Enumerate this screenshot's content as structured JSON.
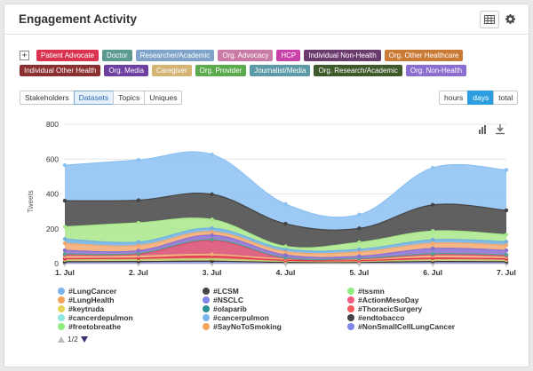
{
  "header": {
    "title": "Engagement Activity"
  },
  "tags_row1": [
    {
      "label": "Patient Advocate",
      "color": "#d9334f"
    },
    {
      "label": "Doctor",
      "color": "#5b9a8e"
    },
    {
      "label": "Researcher/Academic",
      "color": "#7fa3c9"
    },
    {
      "label": "Org. Advocacy",
      "color": "#c97ba5"
    },
    {
      "label": "HCP",
      "color": "#c940a8"
    },
    {
      "label": "Individual Non-Health",
      "color": "#6b3b6e"
    },
    {
      "label": "Org. Other Healthcare",
      "color": "#c97a34"
    }
  ],
  "tags_row2": [
    {
      "label": "Individual Other Health",
      "color": "#8a3030"
    },
    {
      "label": "Org. Media",
      "color": "#6c3fa0"
    },
    {
      "label": "Caregiver",
      "color": "#d4b373"
    },
    {
      "label": "Org. Provider",
      "color": "#5caa4e"
    },
    {
      "label": "Journalist/Media",
      "color": "#5c9aa8"
    },
    {
      "label": "Org. Research/Academic",
      "color": "#3e5a2a"
    },
    {
      "label": "Org. Non-Health",
      "color": "#8a6ed0"
    }
  ],
  "toggle_symbol": "+",
  "view_tabs": [
    {
      "label": "Stakeholders",
      "active": false
    },
    {
      "label": "Datasets",
      "active": true
    },
    {
      "label": "Topics",
      "active": false
    },
    {
      "label": "Uniques",
      "active": false
    }
  ],
  "granularity": [
    {
      "label": "hours",
      "active": false
    },
    {
      "label": "days",
      "active": true
    },
    {
      "label": "total",
      "active": false
    }
  ],
  "chart_data": {
    "type": "area",
    "stacked": true,
    "ylabel": "Tweets",
    "ylim": [
      0,
      800
    ],
    "yticks": [
      0,
      200,
      400,
      600,
      800
    ],
    "categories": [
      "1. Jul",
      "2. Jul",
      "3. Jul",
      "4. Jul",
      "5. Jul",
      "6. Jul",
      "7. Jul"
    ],
    "grid": true,
    "series": [
      {
        "name": "#freetobreathe",
        "color": "#a6e07f",
        "values": [
          1,
          1,
          1,
          1,
          1,
          1,
          1
        ]
      },
      {
        "name": "#NonSmallCellLungCancer",
        "color": "#7b6ee0",
        "values": [
          3,
          3,
          3,
          2,
          2,
          3,
          3
        ]
      },
      {
        "name": "#cancerdepulmon",
        "color": "#9ec3ea",
        "values": [
          5,
          6,
          7,
          3,
          3,
          6,
          5
        ]
      },
      {
        "name": "#endtobacco",
        "color": "#333333",
        "values": [
          2,
          2,
          3,
          1,
          1,
          2,
          2
        ]
      },
      {
        "name": "#keytruda",
        "color": "#c8c86e",
        "values": [
          10,
          12,
          14,
          6,
          5,
          10,
          9
        ]
      },
      {
        "name": "#ThoracicSurgery",
        "color": "#e0324a",
        "values": [
          8,
          8,
          15,
          6,
          5,
          10,
          8
        ]
      },
      {
        "name": "#LungHealth",
        "color": "#f0b07a",
        "values": [
          12,
          12,
          10,
          8,
          7,
          12,
          10
        ]
      },
      {
        "name": "#ActionMesoDay",
        "color": "#d84a6e",
        "values": [
          10,
          10,
          80,
          4,
          3,
          8,
          8
        ]
      },
      {
        "name": "#olaparib",
        "color": "#5aa090",
        "values": [
          5,
          5,
          5,
          3,
          3,
          5,
          5
        ]
      },
      {
        "name": "#NSCLC",
        "color": "#8a6ed0",
        "values": [
          20,
          15,
          25,
          15,
          12,
          30,
          25
        ]
      },
      {
        "name": "#SayNoToSmoking",
        "color": "#f3a86e",
        "values": [
          40,
          30,
          20,
          20,
          25,
          30,
          30
        ]
      },
      {
        "name": "#cancerpulmon",
        "color": "#6fb0e0",
        "values": [
          25,
          20,
          20,
          15,
          15,
          20,
          20
        ]
      },
      {
        "name": "#tssmn",
        "color": "#a9e88a",
        "values": [
          70,
          110,
          50,
          15,
          40,
          50,
          40
        ]
      },
      {
        "name": "#LCSM",
        "color": "#444444",
        "values": [
          150,
          130,
          145,
          130,
          80,
          150,
          140
        ]
      },
      {
        "name": "#LungCancer",
        "color": "#8cc1f2",
        "values": [
          204,
          231,
          228,
          113,
          79,
          213,
          232
        ]
      }
    ]
  },
  "legend": [
    {
      "name": "#LungCancer",
      "color": "#7cb5ec"
    },
    {
      "name": "#LCSM",
      "color": "#434348"
    },
    {
      "name": "#tssmn",
      "color": "#90ed7d"
    },
    {
      "name": "#LungHealth",
      "color": "#f7a35c"
    },
    {
      "name": "#NSCLC",
      "color": "#8085e9"
    },
    {
      "name": "#ActionMesoDay",
      "color": "#f15c80"
    },
    {
      "name": "#keytruda",
      "color": "#e4d354"
    },
    {
      "name": "#olaparib",
      "color": "#2b908f"
    },
    {
      "name": "#ThoracicSurgery",
      "color": "#f45b5b"
    },
    {
      "name": "#cancerdepulmon",
      "color": "#91e8e1"
    },
    {
      "name": "#cancerpulmon",
      "color": "#7cb5ec"
    },
    {
      "name": "#endtobacco",
      "color": "#434348"
    },
    {
      "name": "#freetobreathe",
      "color": "#90ed7d"
    },
    {
      "name": "#SayNoToSmoking",
      "color": "#f7a35c"
    },
    {
      "name": "#NonSmallCellLungCancer",
      "color": "#8085e9"
    }
  ],
  "legend_pager": "1/2",
  "icons": {
    "table": "table-icon",
    "settings": "gear-icon",
    "chart_menu": "bar-chart-icon",
    "download": "download-icon"
  }
}
